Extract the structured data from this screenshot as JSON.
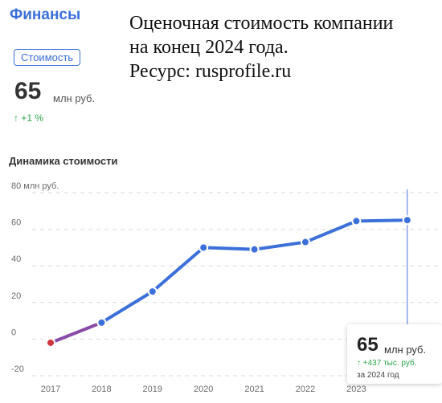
{
  "section_title": "Финансы",
  "annotation": [
    "Оценочная стоимость компании",
    "на конец 2024 года.",
    "Ресурс: rusprofile.ru"
  ],
  "tab_label": "Стоимость",
  "summary": {
    "value": "65",
    "unit": "млн руб.",
    "change": "+1 %"
  },
  "chart_title": "Динамика стоимости",
  "tooltip": {
    "value": "65",
    "unit": "млн руб.",
    "change": "+437 тыс. руб.",
    "period": "за 2024 год"
  },
  "colors": {
    "accent": "#3b6fd9",
    "line": "#3b6fd9",
    "first_point": "#d0343c",
    "positive": "#2aa84a"
  },
  "chart_data": {
    "type": "line",
    "title": "Динамика стоимости",
    "x": [
      "2017",
      "2018",
      "2019",
      "2020",
      "2021",
      "2022",
      "2023",
      "2024"
    ],
    "series": [
      {
        "values": [
          -2,
          9,
          26,
          50,
          49,
          53,
          64.5,
          65
        ]
      }
    ],
    "ylim": [
      -20,
      80
    ],
    "y_ticks": [
      -20,
      0,
      20,
      40,
      60,
      80
    ],
    "y_tick_labels": [
      "-20",
      "0",
      "20",
      "40",
      "60",
      "80 млн руб."
    ],
    "x_tick_labels": [
      "2017",
      "2018",
      "2019",
      "2020",
      "2021",
      "2022",
      "2023"
    ],
    "grid": true,
    "highlight_index": 7
  }
}
